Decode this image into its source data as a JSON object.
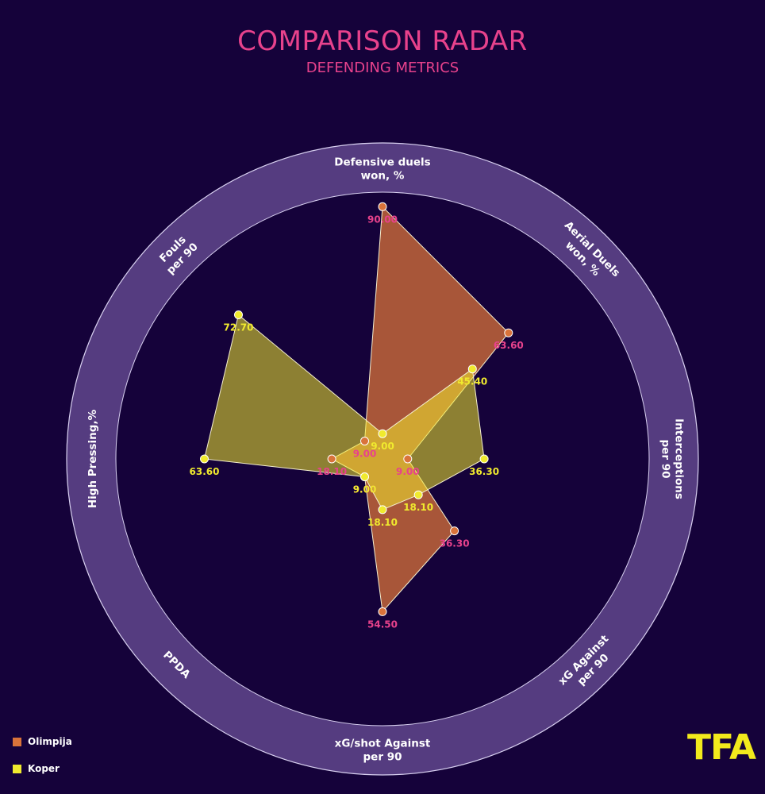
{
  "title": "COMPARISON RADAR",
  "subtitle": "DEFENDING METRICS",
  "logo": "TFA",
  "colors": {
    "background": "#15023a",
    "ring": "#553c80",
    "title": "#e8428c",
    "olimpija": "#d9733a",
    "koper": "#f0ea2e"
  },
  "chart_data": {
    "type": "radar",
    "title": "COMPARISON RADAR",
    "subtitle": "DEFENDING METRICS",
    "axes": [
      [
        "Defensive duels",
        "won, %"
      ],
      [
        "Aerial Duels",
        "won, %"
      ],
      [
        "Interceptions",
        "per 90"
      ],
      [
        "xG Against",
        "per 90"
      ],
      [
        "xG/shot Against",
        "per 90"
      ],
      [
        "PPDA"
      ],
      [
        "High Pressing,%"
      ],
      [
        "Fouls",
        "per 90"
      ]
    ],
    "series": [
      {
        "name": "Olimpija",
        "color": "#d9733a",
        "values": [
          90.0,
          63.6,
          9.0,
          36.3,
          54.5,
          9.0,
          18.1,
          9.0
        ],
        "labels": [
          "90.00",
          "63.60",
          "9.00",
          "36.30",
          "54.50",
          "9.00",
          "18.10",
          "9.00"
        ]
      },
      {
        "name": "Koper",
        "color": "#f0ea2e",
        "values": [
          9.0,
          45.4,
          36.3,
          18.1,
          18.1,
          9.0,
          63.6,
          72.7
        ],
        "labels": [
          "9.00",
          "45.40",
          "36.30",
          "18.10",
          "18.10",
          "9.00",
          "63.60",
          "72.70"
        ]
      }
    ],
    "legend": "bottom-left"
  }
}
